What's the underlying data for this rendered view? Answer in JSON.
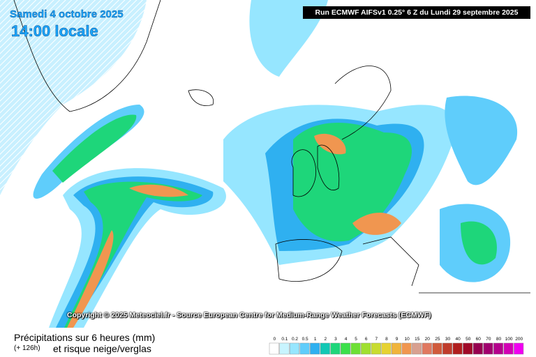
{
  "header": {
    "date": "Samedi 4 octobre 2025",
    "time": "14:00 locale",
    "run": "Run ECMWF AIFSv1 0.25° 6 Z du Lundi 29 septembre 2025"
  },
  "copyright": "Copyright © 2025 Meteociel.fr - Source European Centre for Medium-Range Weather Forecasts (ECMWF)",
  "legend": {
    "title": "Précipitations sur 6 heures (mm)",
    "lead": "(+ 126h)",
    "subtitle": "et risque neige/verglas",
    "items": [
      {
        "label": "0",
        "color": "#ffffff"
      },
      {
        "label": "0.1",
        "color": "#c8f4ff"
      },
      {
        "label": "0.2",
        "color": "#96e6ff"
      },
      {
        "label": "0.5",
        "color": "#5fcdfb"
      },
      {
        "label": "1",
        "color": "#2fb0f0"
      },
      {
        "label": "2",
        "color": "#12c8b4"
      },
      {
        "label": "3",
        "color": "#1ed67a"
      },
      {
        "label": "4",
        "color": "#3ce04a"
      },
      {
        "label": "5",
        "color": "#6ee034"
      },
      {
        "label": "6",
        "color": "#a0e030"
      },
      {
        "label": "7",
        "color": "#c8dc30"
      },
      {
        "label": "8",
        "color": "#e6d232"
      },
      {
        "label": "9",
        "color": "#f0b43c"
      },
      {
        "label": "10",
        "color": "#f09650"
      },
      {
        "label": "15",
        "color": "#d8a090"
      },
      {
        "label": "20",
        "color": "#e07860"
      },
      {
        "label": "25",
        "color": "#d05a3c"
      },
      {
        "label": "30",
        "color": "#c03c2c"
      },
      {
        "label": "40",
        "color": "#b01e1e"
      },
      {
        "label": "50",
        "color": "#a00a28"
      },
      {
        "label": "60",
        "color": "#960050"
      },
      {
        "label": "70",
        "color": "#a0006e"
      },
      {
        "label": "80",
        "color": "#b4008c"
      },
      {
        "label": "100",
        "color": "#d200b4"
      },
      {
        "label": "200",
        "color": "#f000f0"
      }
    ]
  }
}
